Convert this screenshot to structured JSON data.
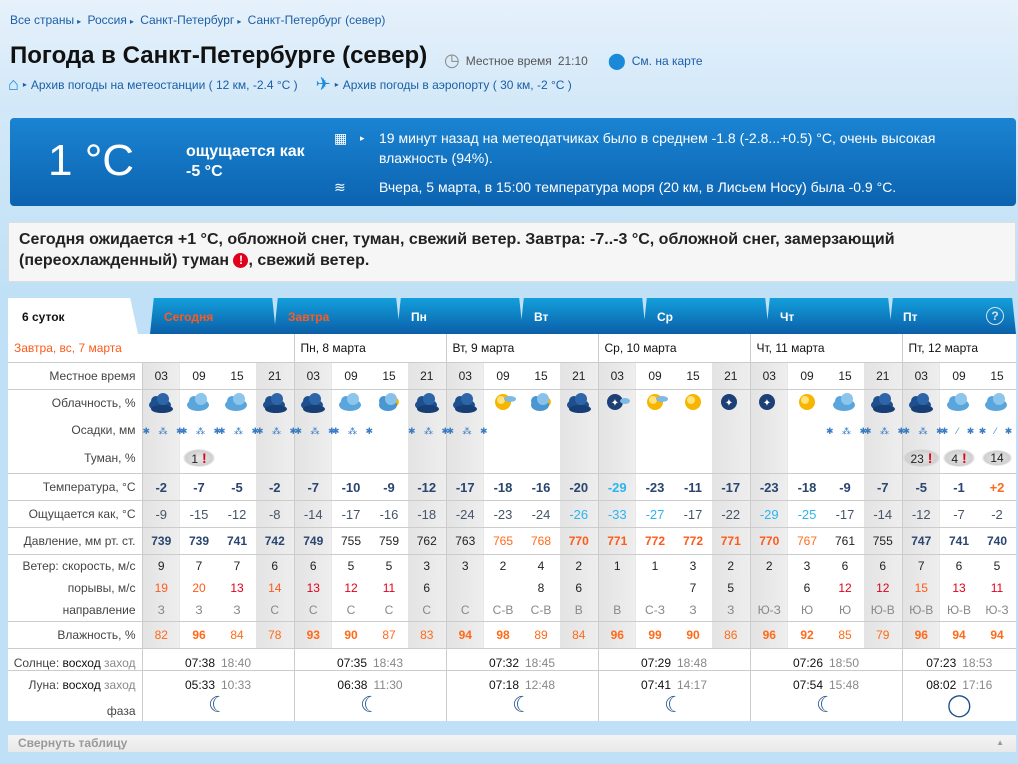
{
  "breadcrumbs": [
    "Все страны",
    "Россия",
    "Санкт-Петербург",
    "Санкт-Петербург (север)"
  ],
  "title": "Погода в Санкт-Петербурге (север)",
  "local_time_label": "Местное время",
  "local_time": "21:10",
  "map_link": "См. на карте",
  "archive_station": "Архив погоды на метеостанции ( 12 км, -2.4 °C )",
  "archive_airport": "Архив погоды в аэропорту ( 30 км, -2 °C )",
  "now": {
    "temp": "1 °C",
    "feels": "ощущается как -5 °C",
    "info1": "19 минут назад на метеодатчиках было в среднем -1.8 (-2.8...+0.5) °C, очень высокая влажность (94%).",
    "info2": "Вчера, 5 марта, в 15:00 температура моря (20 км, в Лисьем Носу) была -0.9 °C."
  },
  "forecast_text": "Сегодня ожидается +1 °C, обложной снег, туман, свежий ветер. Завтра: -7..-3 °C, обложной снег, замерзающий (переохлажденный) туман",
  "forecast_text_tail": ", свежий ветер.",
  "warn_symbol": "!",
  "tabs": [
    {
      "label": "6 суток"
    },
    {
      "label": "Сегодня"
    },
    {
      "label": "Завтра"
    },
    {
      "label": "Пн"
    },
    {
      "label": "Вт"
    },
    {
      "label": "Ср"
    },
    {
      "label": "Чт"
    },
    {
      "label": "Пт"
    }
  ],
  "help": "?",
  "colors": {
    "accent": "#0c63b0",
    "warm": "#ff6a1a",
    "alert": "#e0001b",
    "cold": "#2bb4f0"
  },
  "labels": {
    "time": "Местное время",
    "clouds": "Облачность, %",
    "precip": "Осадки, мм",
    "fog": "Туман, %",
    "temp": "Температура, °С",
    "feels": "Ощущается как, °С",
    "pressure": "Давление, мм рт. ст.",
    "wind": "Ветер: скорость, м/с",
    "gusts": "порывы, м/с",
    "dir": "направление",
    "humidity": "Влажность, %",
    "sun": "Солнце: восход заход",
    "moon": "Луна: восход заход",
    "phase": "фаза"
  },
  "days": [
    {
      "title": "Завтра, вс, 7 марта",
      "hours": [
        "03",
        "09",
        "15",
        "21"
      ],
      "clouds": [
        "overcast-night",
        "cloudy",
        "cloudy",
        "overcast"
      ],
      "precip": [
        "snow",
        "snow",
        "snow",
        "snow"
      ],
      "fog": [
        "",
        "1!",
        "",
        ""
      ],
      "temp": [
        "-2",
        "-7",
        "-5",
        "-2"
      ],
      "feels": [
        "-9",
        "-15",
        "-12",
        "-8"
      ],
      "pressure": [
        "739",
        "739",
        "741",
        "742"
      ],
      "wind": [
        "9",
        "7",
        "7",
        "6"
      ],
      "gusts": [
        "19",
        "20",
        "13",
        "14"
      ],
      "dir": [
        "З",
        "З",
        "З",
        "С"
      ],
      "humidity": [
        "82",
        "96",
        "84",
        "78"
      ],
      "sunrise": "07:38",
      "sunset": "18:40",
      "moonrise": "05:33",
      "moonset": "10:33",
      "phase": "waning-crescent"
    },
    {
      "title": "Пн, 8 марта",
      "hours": [
        "03",
        "09",
        "15",
        "21"
      ],
      "clouds": [
        "overcast",
        "cloudy",
        "partly-cloudy",
        "overcast"
      ],
      "precip": [
        "snow",
        "snow",
        "",
        "snow"
      ],
      "fog": [
        "",
        "",
        "",
        ""
      ],
      "temp": [
        "-7",
        "-10",
        "-9",
        "-12"
      ],
      "feels": [
        "-14",
        "-17",
        "-16",
        "-18"
      ],
      "pressure": [
        "749",
        "755",
        "759",
        "762"
      ],
      "wind": [
        "6",
        "5",
        "5",
        "3"
      ],
      "gusts": [
        "13",
        "12",
        "11",
        "6"
      ],
      "dir": [
        "С",
        "С",
        "С",
        "С"
      ],
      "humidity": [
        "93",
        "90",
        "87",
        "83"
      ],
      "sunrise": "07:35",
      "sunset": "18:43",
      "moonrise": "06:38",
      "moonset": "11:30",
      "phase": "waning-crescent"
    },
    {
      "title": "Вт, 9 марта",
      "hours": [
        "03",
        "09",
        "15",
        "21"
      ],
      "clouds": [
        "overcast-night",
        "sun-cloud",
        "partly-cloudy",
        "overcast-night"
      ],
      "precip": [
        "snow",
        "",
        "",
        ""
      ],
      "fog": [
        "",
        "",
        "",
        ""
      ],
      "temp": [
        "-17",
        "-18",
        "-16",
        "-20"
      ],
      "feels": [
        "-24",
        "-23",
        "-24",
        "-26"
      ],
      "pressure": [
        "763",
        "765",
        "768",
        "770"
      ],
      "wind": [
        "3",
        "2",
        "4",
        "2"
      ],
      "gusts": [
        "",
        "",
        "8",
        "6"
      ],
      "dir": [
        "С",
        "С-В",
        "С-В",
        "В"
      ],
      "humidity": [
        "94",
        "98",
        "89",
        "84"
      ],
      "sunrise": "07:32",
      "sunset": "18:45",
      "moonrise": "07:18",
      "moonset": "12:48",
      "phase": "waning-crescent"
    },
    {
      "title": "Ср, 10 марта",
      "hours": [
        "03",
        "09",
        "15",
        "21"
      ],
      "clouds": [
        "clear-night-cloud",
        "sun-cloud",
        "sun",
        "clear-night"
      ],
      "precip": [
        "",
        "",
        "",
        ""
      ],
      "fog": [
        "",
        "",
        "",
        ""
      ],
      "temp": [
        "-29",
        "-23",
        "-11",
        "-17"
      ],
      "feels": [
        "-33",
        "-27",
        "-17",
        "-22"
      ],
      "pressure": [
        "771",
        "772",
        "772",
        "771"
      ],
      "wind": [
        "1",
        "1",
        "3",
        "2"
      ],
      "gusts": [
        "",
        "",
        "7",
        "5"
      ],
      "dir": [
        "В",
        "С-З",
        "З",
        "З"
      ],
      "humidity": [
        "96",
        "99",
        "90",
        "86"
      ],
      "sunrise": "07:29",
      "sunset": "18:48",
      "moonrise": "07:41",
      "moonset": "14:17",
      "phase": "waning-crescent"
    },
    {
      "title": "Чт, 11 марта",
      "hours": [
        "03",
        "09",
        "15",
        "21"
      ],
      "clouds": [
        "clear-night",
        "sun",
        "cloudy",
        "overcast"
      ],
      "precip": [
        "",
        "",
        "snow",
        "snow"
      ],
      "fog": [
        "",
        "",
        "",
        ""
      ],
      "temp": [
        "-23",
        "-18",
        "-9",
        "-7"
      ],
      "feels": [
        "-29",
        "-25",
        "-17",
        "-14"
      ],
      "pressure": [
        "770",
        "767",
        "761",
        "755"
      ],
      "wind": [
        "2",
        "3",
        "6",
        "6"
      ],
      "gusts": [
        "",
        "6",
        "12",
        "12"
      ],
      "dir": [
        "Ю-З",
        "Ю",
        "Ю",
        "Ю-В"
      ],
      "humidity": [
        "96",
        "92",
        "85",
        "79"
      ],
      "sunrise": "07:26",
      "sunset": "18:50",
      "moonrise": "07:54",
      "moonset": "15:48",
      "phase": "waning-crescent"
    },
    {
      "title": "Пт, 12 марта",
      "hours": [
        "03",
        "09",
        "15"
      ],
      "clouds": [
        "overcast",
        "cloudy",
        "cloudy"
      ],
      "precip": [
        "snow",
        "sleet",
        "sleet"
      ],
      "fog": [
        "23!",
        "4!",
        "14"
      ],
      "temp": [
        "-5",
        "-1",
        "+2"
      ],
      "feels": [
        "-12",
        "-7",
        "-2"
      ],
      "pressure": [
        "747",
        "741",
        "740"
      ],
      "wind": [
        "7",
        "6",
        "5"
      ],
      "gusts": [
        "15",
        "13",
        "11"
      ],
      "dir": [
        "Ю-В",
        "Ю-В",
        "Ю-З"
      ],
      "humidity": [
        "96",
        "94",
        "94"
      ],
      "sunrise": "07:23",
      "sunset": "18:53",
      "moonrise": "08:02",
      "moonset": "17:16",
      "phase": "new-moon"
    }
  ],
  "collapse": "Свернуть таблицу"
}
